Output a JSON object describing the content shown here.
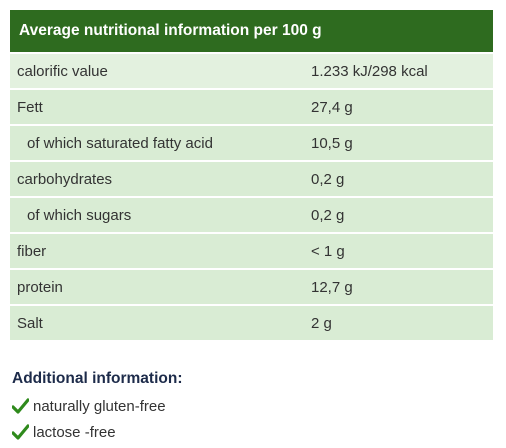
{
  "header": {
    "title": "Average nutritional information per 100 g"
  },
  "table": {
    "rows": [
      [
        "calorific value",
        "1.233 kJ/298 kcal"
      ],
      [
        "Fett",
        "27,4 g"
      ],
      [
        "of which saturated fatty acid",
        "10,5 g"
      ],
      [
        "carbohydrates",
        "0,2 g"
      ],
      [
        "of which sugars",
        "0,2 g"
      ],
      [
        "fiber",
        "< 1 g"
      ],
      [
        "protein",
        "12,7 g"
      ],
      [
        "Salt",
        "2 g"
      ]
    ]
  },
  "additional": {
    "title": "Additional information:",
    "items": [
      "naturally gluten-free",
      "lactose -free"
    ]
  }
}
